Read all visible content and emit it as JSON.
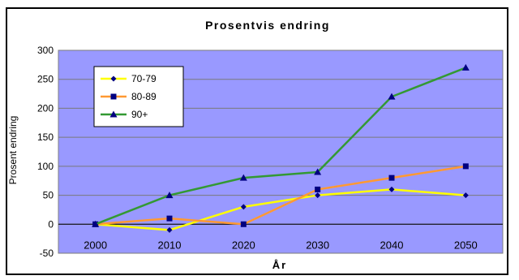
{
  "chart_data": {
    "type": "line",
    "title": "Prosentvis endring",
    "xlabel": "År",
    "ylabel": "Prosent endring",
    "categories": [
      "2000",
      "2010",
      "2020",
      "2030",
      "2040",
      "2050"
    ],
    "ylim": [
      -50,
      300
    ],
    "yticks": [
      -50,
      0,
      50,
      100,
      150,
      200,
      250,
      300
    ],
    "grid": "horizontal",
    "legend_position": "top-left",
    "plot_background": "#9999ff",
    "series": [
      {
        "name": "70-79",
        "color": "#ffff00",
        "marker": "diamond",
        "values": [
          0,
          -10,
          30,
          50,
          60,
          50
        ]
      },
      {
        "name": "80-89",
        "color": "#ff9933",
        "marker": "square",
        "values": [
          0,
          10,
          0,
          60,
          80,
          100
        ]
      },
      {
        "name": "90+",
        "color": "#339933",
        "marker": "triangle",
        "values": [
          0,
          50,
          80,
          90,
          220,
          270
        ]
      }
    ]
  }
}
